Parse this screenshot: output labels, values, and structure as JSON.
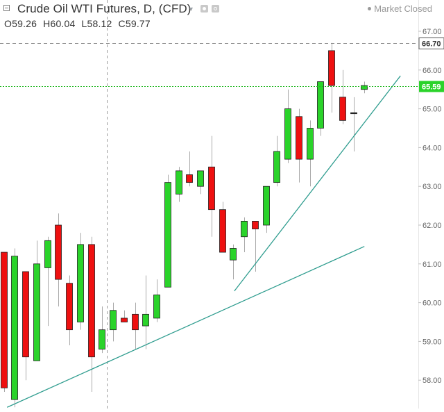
{
  "header": {
    "title": "Crude Oil WTI Futures, D, (CFD)",
    "market_status": "Market Closed",
    "ohlc": [
      {
        "key": "O",
        "value": "59.26"
      },
      {
        "key": "H",
        "value": "60.04"
      },
      {
        "key": "L",
        "value": "58.12"
      },
      {
        "key": "C",
        "value": "59.77"
      }
    ]
  },
  "colors": {
    "up": "#2ad32a",
    "down": "#ee1010",
    "wick": "#a9a9a9",
    "trendline": "#2f9d8f",
    "last_price_line": "#23b823",
    "axis_text": "#666666",
    "crosshair": "#9a9a9a"
  },
  "chart_data": {
    "type": "candlestick",
    "y_axis": {
      "ticks": [
        "58.00",
        "59.00",
        "60.00",
        "61.00",
        "62.00",
        "63.00",
        "64.00",
        "65.00",
        "66.00",
        "67.00"
      ],
      "range": [
        57.3,
        67.6
      ],
      "position": "right"
    },
    "candles": [
      {
        "o": 61.3,
        "h": 61.3,
        "l": 57.7,
        "c": 57.8
      },
      {
        "o": 57.5,
        "h": 61.4,
        "l": 57.3,
        "c": 61.2
      },
      {
        "o": 60.8,
        "h": 60.8,
        "l": 58.0,
        "c": 58.6
      },
      {
        "o": 58.5,
        "h": 61.6,
        "l": 58.5,
        "c": 61.0
      },
      {
        "o": 60.9,
        "h": 61.7,
        "l": 59.4,
        "c": 61.6
      },
      {
        "o": 62.0,
        "h": 62.3,
        "l": 59.9,
        "c": 60.6
      },
      {
        "o": 60.5,
        "h": 60.7,
        "l": 58.9,
        "c": 59.3
      },
      {
        "o": 59.5,
        "h": 61.8,
        "l": 59.3,
        "c": 61.5
      },
      {
        "o": 61.5,
        "h": 61.7,
        "l": 57.7,
        "c": 58.6
      },
      {
        "o": 58.8,
        "h": 59.9,
        "l": 58.7,
        "c": 59.3
      },
      {
        "o": 59.3,
        "h": 60.0,
        "l": 59.0,
        "c": 59.8
      },
      {
        "o": 59.6,
        "h": 59.8,
        "l": 59.5,
        "c": 59.5
      },
      {
        "o": 59.7,
        "h": 60.0,
        "l": 58.8,
        "c": 59.3
      },
      {
        "o": 59.4,
        "h": 60.7,
        "l": 58.8,
        "c": 59.7
      },
      {
        "o": 59.6,
        "h": 60.6,
        "l": 59.5,
        "c": 60.2
      },
      {
        "o": 60.4,
        "h": 63.3,
        "l": 60.4,
        "c": 63.1
      },
      {
        "o": 62.8,
        "h": 63.5,
        "l": 62.6,
        "c": 63.4
      },
      {
        "o": 63.3,
        "h": 63.9,
        "l": 63.0,
        "c": 63.1
      },
      {
        "o": 63.0,
        "h": 63.4,
        "l": 62.8,
        "c": 63.4
      },
      {
        "o": 63.5,
        "h": 64.3,
        "l": 61.7,
        "c": 62.4
      },
      {
        "o": 62.4,
        "h": 62.6,
        "l": 61.4,
        "c": 61.3
      },
      {
        "o": 61.1,
        "h": 61.5,
        "l": 60.6,
        "c": 61.4
      },
      {
        "o": 61.7,
        "h": 62.2,
        "l": 61.3,
        "c": 62.1
      },
      {
        "o": 62.1,
        "h": 62.1,
        "l": 60.8,
        "c": 61.9
      },
      {
        "o": 62.0,
        "h": 63.0,
        "l": 61.8,
        "c": 63.0
      },
      {
        "o": 63.1,
        "h": 64.3,
        "l": 63.0,
        "c": 63.9
      },
      {
        "o": 63.7,
        "h": 65.5,
        "l": 63.6,
        "c": 65.0
      },
      {
        "o": 64.8,
        "h": 65.0,
        "l": 63.1,
        "c": 63.7
      },
      {
        "o": 63.7,
        "h": 64.7,
        "l": 63.0,
        "c": 64.5
      },
      {
        "o": 64.5,
        "h": 65.7,
        "l": 64.3,
        "c": 65.7
      },
      {
        "o": 66.5,
        "h": 66.7,
        "l": 64.9,
        "c": 65.6
      },
      {
        "o": 65.3,
        "h": 66.0,
        "l": 64.6,
        "c": 64.7
      },
      {
        "o": 64.9,
        "h": 65.3,
        "l": 63.9,
        "c": 64.9
      },
      {
        "o": 65.5,
        "h": 65.7,
        "l": 65.4,
        "c": 65.6
      }
    ],
    "markers": {
      "high_label": "66.70",
      "high_value": 66.7,
      "last_label": "65.59",
      "last_value": 65.59
    },
    "trendlines": [
      {
        "from": {
          "i": 0.3,
          "y": 57.3
        },
        "to": {
          "i": 33.0,
          "y": 61.45
        }
      },
      {
        "from": {
          "i": 21.1,
          "y": 60.3
        },
        "to": {
          "i": 36.3,
          "y": 65.85
        }
      }
    ],
    "crosshair": {
      "i": 9.4
    }
  }
}
